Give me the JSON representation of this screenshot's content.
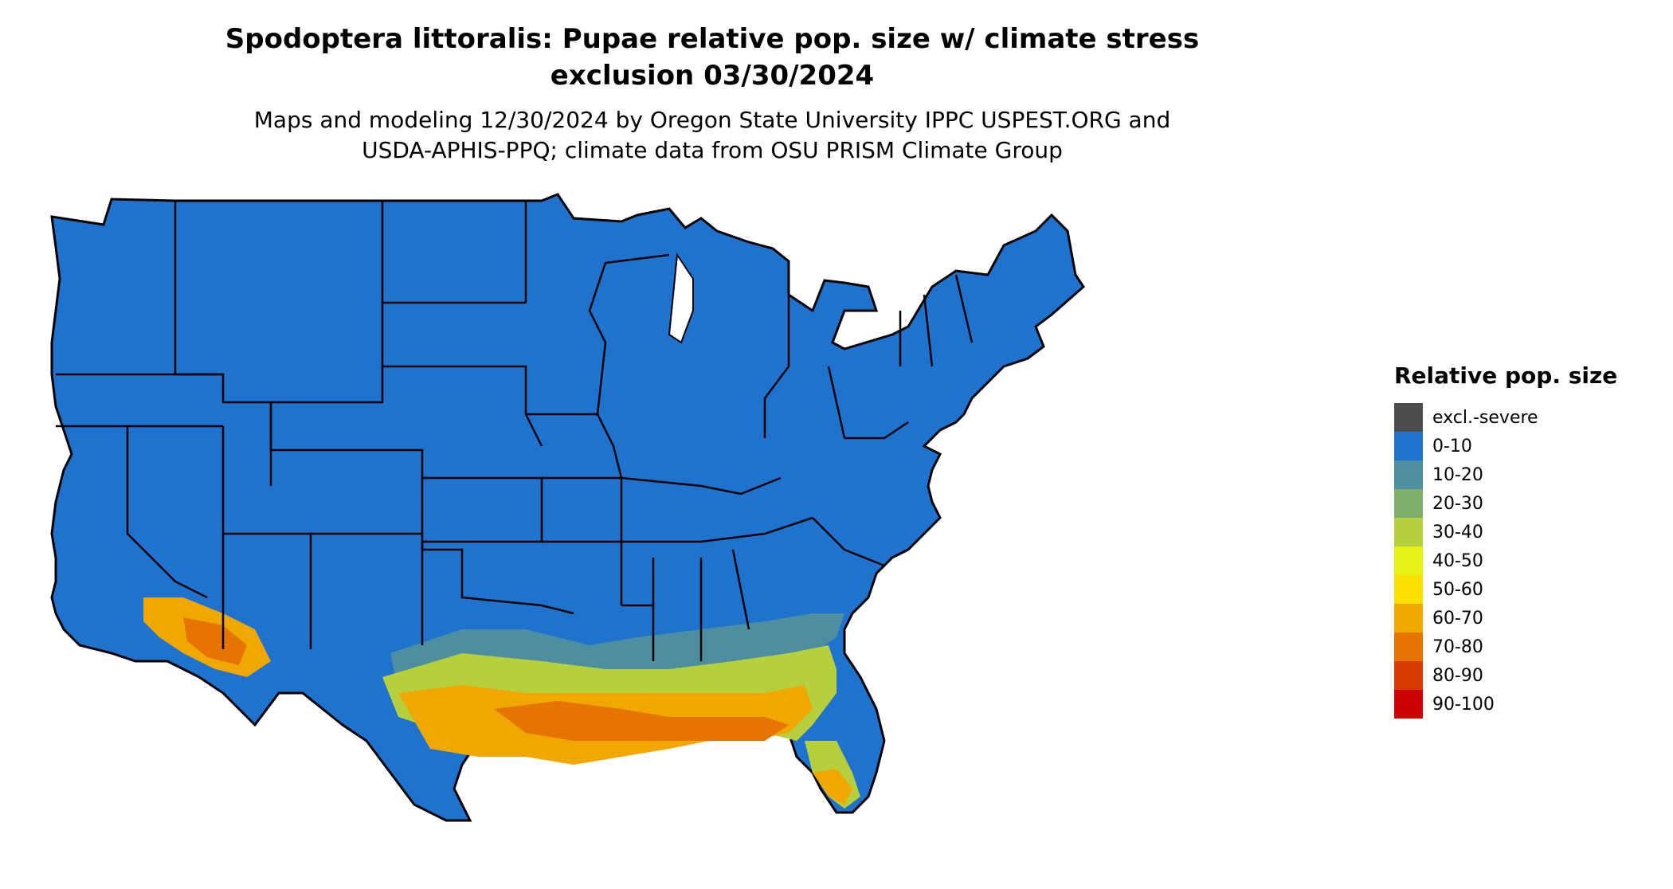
{
  "title_line1": "Spodoptera littoralis: Pupae relative pop. size w/ climate stress",
  "title_line2": "exclusion 03/30/2024",
  "subtitle_line1": "Maps and modeling 12/30/2024 by Oregon State University IPPC USPEST.ORG and",
  "subtitle_line2": "USDA-APHIS-PPQ; climate data from OSU PRISM Climate Group",
  "legend": {
    "title": "Relative pop. size",
    "items": [
      {
        "label": "excl.-severe",
        "color": "#4d4d4d"
      },
      {
        "label": "0-10",
        "color": "#1f73cf"
      },
      {
        "label": "10-20",
        "color": "#4d8fa0"
      },
      {
        "label": "20-30",
        "color": "#7fae6c"
      },
      {
        "label": "30-40",
        "color": "#b5d03c"
      },
      {
        "label": "40-50",
        "color": "#e8f01a"
      },
      {
        "label": "50-60",
        "color": "#fbe000"
      },
      {
        "label": "60-70",
        "color": "#f0a800"
      },
      {
        "label": "70-80",
        "color": "#e57400"
      },
      {
        "label": "80-90",
        "color": "#d93a00"
      },
      {
        "label": "90-100",
        "color": "#cc0000"
      }
    ]
  }
}
